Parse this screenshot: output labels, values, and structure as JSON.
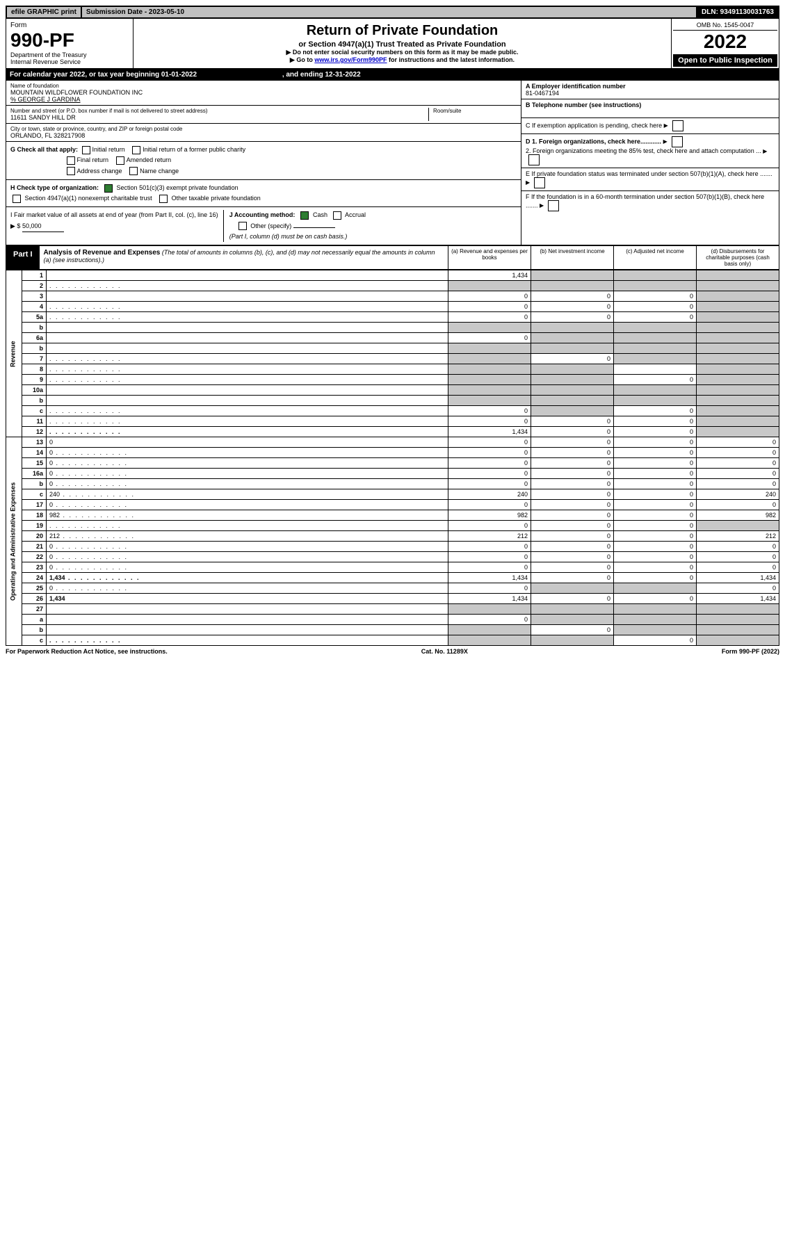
{
  "topbar": {
    "efile": "efile GRAPHIC print",
    "submission": "Submission Date - 2023-05-10",
    "dln": "DLN: 93491130031763"
  },
  "header": {
    "form_label": "Form",
    "form_no": "990-PF",
    "dept": "Department of the Treasury",
    "irs": "Internal Revenue Service",
    "title": "Return of Private Foundation",
    "subtitle": "or Section 4947(a)(1) Trust Treated as Private Foundation",
    "note1": "▶ Do not enter social security numbers on this form as it may be made public.",
    "note2_a": "▶ Go to ",
    "note2_link": "www.irs.gov/Form990PF",
    "note2_b": " for instructions and the latest information.",
    "omb": "OMB No. 1545-0047",
    "year": "2022",
    "open": "Open to Public Inspection"
  },
  "calendar": {
    "text_a": "For calendar year 2022, or tax year beginning ",
    "begin": "01-01-2022",
    "text_b": " , and ending ",
    "end": "12-31-2022"
  },
  "entity": {
    "name_label": "Name of foundation",
    "name": "MOUNTAIN WILDFLOWER FOUNDATION INC",
    "care_of": "% GEORGE J GARDINA",
    "street_label": "Number and street (or P.O. box number if mail is not delivered to street address)",
    "street": "11611 SANDY HILL DR",
    "room_label": "Room/suite",
    "city_label": "City or town, state or province, country, and ZIP or foreign postal code",
    "city": "ORLANDO, FL  328217908",
    "ein_label": "A Employer identification number",
    "ein": "81-0467194",
    "phone_label": "B Telephone number (see instructions)",
    "c_label": "C If exemption application is pending, check here",
    "d1": "D 1. Foreign organizations, check here............",
    "d2": "2. Foreign organizations meeting the 85% test, check here and attach computation ...",
    "e": "E  If private foundation status was terminated under section 507(b)(1)(A), check here .......",
    "f": "F  If the foundation is in a 60-month termination under section 507(b)(1)(B), check here .......",
    "g": "G Check all that apply:",
    "g_opts": [
      "Initial return",
      "Initial return of a former public charity",
      "Final return",
      "Amended return",
      "Address change",
      "Name change"
    ],
    "h": "H Check type of organization:",
    "h1": "Section 501(c)(3) exempt private foundation",
    "h2": "Section 4947(a)(1) nonexempt charitable trust",
    "h3": "Other taxable private foundation",
    "i_a": "I Fair market value of all assets at end of year (from Part II, col. (c), line 16) ▶ $ ",
    "i_val": "50,000",
    "j": "J Accounting method:",
    "j_cash": "Cash",
    "j_accrual": "Accrual",
    "j_other": "Other (specify)",
    "j_note": "(Part I, column (d) must be on cash basis.)"
  },
  "part1": {
    "label": "Part I",
    "title": "Analysis of Revenue and Expenses",
    "title_note": " (The total of amounts in columns (b), (c), and (d) may not necessarily equal the amounts in column (a) (see instructions).)",
    "col_a": "(a) Revenue and expenses per books",
    "col_b": "(b) Net investment income",
    "col_c": "(c) Adjusted net income",
    "col_d": "(d) Disbursements for charitable purposes (cash basis only)"
  },
  "side": {
    "revenue": "Revenue",
    "expenses": "Operating and Administrative Expenses"
  },
  "rows": [
    {
      "n": "1",
      "d": "",
      "a": "1,434",
      "b": "",
      "c": "",
      "sb": true,
      "sc": true,
      "sd": true
    },
    {
      "n": "2",
      "d": "",
      "a": "",
      "b": "",
      "c": "",
      "sa": true,
      "sb": true,
      "sc": true,
      "sd": true,
      "dots": true
    },
    {
      "n": "3",
      "d": "",
      "a": "0",
      "b": "0",
      "c": "0",
      "sd": true
    },
    {
      "n": "4",
      "d": "",
      "a": "0",
      "b": "0",
      "c": "0",
      "sd": true,
      "dots": true
    },
    {
      "n": "5a",
      "d": "",
      "a": "0",
      "b": "0",
      "c": "0",
      "sd": true,
      "dots": true
    },
    {
      "n": "b",
      "d": "",
      "a": "",
      "b": "",
      "c": "",
      "sa": true,
      "sb": true,
      "sc": true,
      "sd": true
    },
    {
      "n": "6a",
      "d": "",
      "a": "0",
      "b": "",
      "c": "",
      "sb": true,
      "sc": true,
      "sd": true
    },
    {
      "n": "b",
      "d": "",
      "a": "",
      "b": "",
      "c": "",
      "sa": true,
      "sb": true,
      "sc": true,
      "sd": true
    },
    {
      "n": "7",
      "d": "",
      "a": "",
      "b": "0",
      "c": "",
      "sa": true,
      "sc": true,
      "sd": true,
      "dots": true
    },
    {
      "n": "8",
      "d": "",
      "a": "",
      "b": "",
      "c": "",
      "sa": true,
      "sb": true,
      "sd": true,
      "dots": true
    },
    {
      "n": "9",
      "d": "",
      "a": "",
      "b": "",
      "c": "0",
      "sa": true,
      "sb": true,
      "sd": true,
      "dots": true
    },
    {
      "n": "10a",
      "d": "",
      "a": "",
      "b": "",
      "c": "",
      "sa": true,
      "sb": true,
      "sc": true,
      "sd": true
    },
    {
      "n": "b",
      "d": "",
      "a": "",
      "b": "",
      "c": "",
      "sa": true,
      "sb": true,
      "sc": true,
      "sd": true
    },
    {
      "n": "c",
      "d": "",
      "a": "0",
      "b": "",
      "c": "0",
      "sb": true,
      "sd": true,
      "dots": true
    },
    {
      "n": "11",
      "d": "",
      "a": "0",
      "b": "0",
      "c": "0",
      "sd": true,
      "dots": true
    },
    {
      "n": "12",
      "d": "",
      "a": "1,434",
      "b": "0",
      "c": "0",
      "sd": true,
      "bold": true,
      "dots": true
    },
    {
      "n": "13",
      "d": "0",
      "a": "0",
      "b": "0",
      "c": "0"
    },
    {
      "n": "14",
      "d": "0",
      "a": "0",
      "b": "0",
      "c": "0",
      "dots": true
    },
    {
      "n": "15",
      "d": "0",
      "a": "0",
      "b": "0",
      "c": "0",
      "dots": true
    },
    {
      "n": "16a",
      "d": "0",
      "a": "0",
      "b": "0",
      "c": "0",
      "dots": true
    },
    {
      "n": "b",
      "d": "0",
      "a": "0",
      "b": "0",
      "c": "0",
      "dots": true
    },
    {
      "n": "c",
      "d": "240",
      "a": "240",
      "b": "0",
      "c": "0",
      "dots": true
    },
    {
      "n": "17",
      "d": "0",
      "a": "0",
      "b": "0",
      "c": "0",
      "dots": true
    },
    {
      "n": "18",
      "d": "982",
      "a": "982",
      "b": "0",
      "c": "0",
      "dots": true
    },
    {
      "n": "19",
      "d": "",
      "a": "0",
      "b": "0",
      "c": "0",
      "sd": true,
      "dots": true
    },
    {
      "n": "20",
      "d": "212",
      "a": "212",
      "b": "0",
      "c": "0",
      "dots": true
    },
    {
      "n": "21",
      "d": "0",
      "a": "0",
      "b": "0",
      "c": "0",
      "dots": true
    },
    {
      "n": "22",
      "d": "0",
      "a": "0",
      "b": "0",
      "c": "0",
      "dots": true
    },
    {
      "n": "23",
      "d": "0",
      "a": "0",
      "b": "0",
      "c": "0",
      "dots": true
    },
    {
      "n": "24",
      "d": "1,434",
      "a": "1,434",
      "b": "0",
      "c": "0",
      "bold": true,
      "dots": true
    },
    {
      "n": "25",
      "d": "0",
      "a": "0",
      "b": "",
      "c": "",
      "sb": true,
      "sc": true,
      "dots": true
    },
    {
      "n": "26",
      "d": "1,434",
      "a": "1,434",
      "b": "0",
      "c": "0",
      "bold": true
    },
    {
      "n": "27",
      "d": "",
      "a": "",
      "b": "",
      "c": "",
      "sa": true,
      "sb": true,
      "sc": true,
      "sd": true
    },
    {
      "n": "a",
      "d": "",
      "a": "0",
      "b": "",
      "c": "",
      "sb": true,
      "sc": true,
      "sd": true,
      "bold": true
    },
    {
      "n": "b",
      "d": "",
      "a": "",
      "b": "0",
      "c": "",
      "sa": true,
      "sc": true,
      "sd": true,
      "bold": true
    },
    {
      "n": "c",
      "d": "",
      "a": "",
      "b": "",
      "c": "0",
      "sa": true,
      "sb": true,
      "sd": true,
      "bold": true,
      "dots": true
    }
  ],
  "footer": {
    "left": "For Paperwork Reduction Act Notice, see instructions.",
    "center": "Cat. No. 11289X",
    "right": "Form 990-PF (2022)"
  }
}
